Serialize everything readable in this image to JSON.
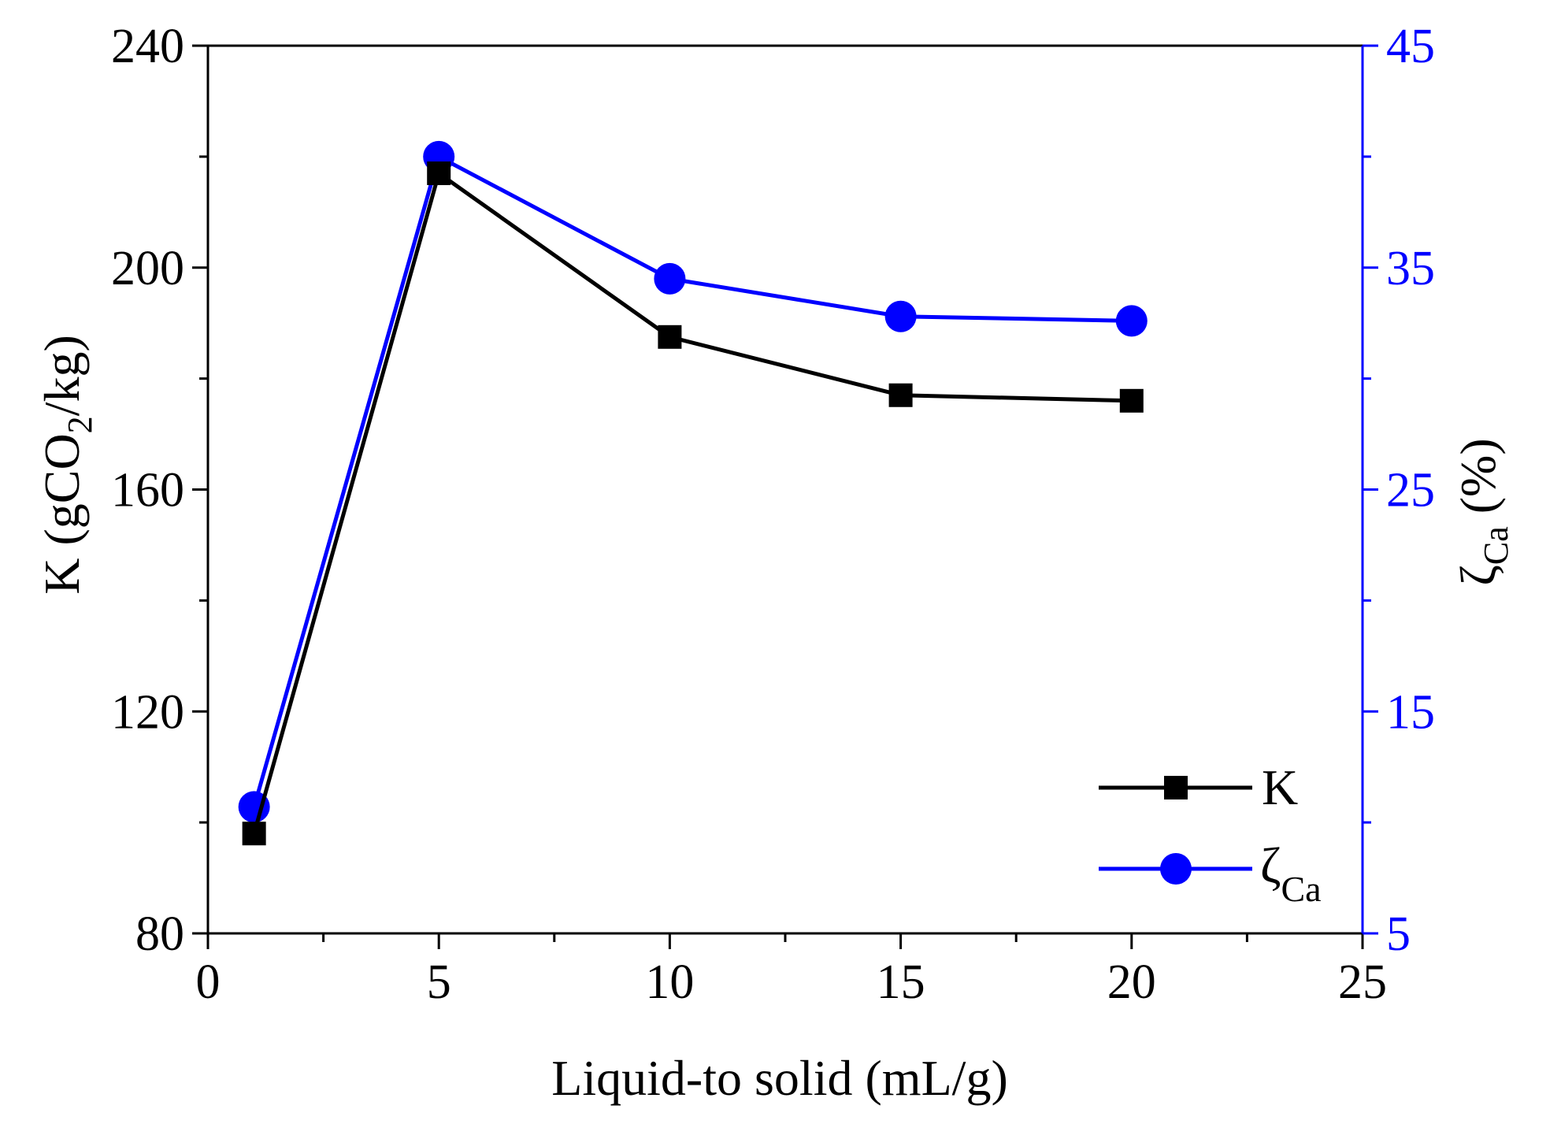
{
  "chart_data": {
    "type": "line",
    "xlabel": "Liquid-to solid (mL/g)",
    "ylabel": {
      "prefix": "K (gCO",
      "sub": "2",
      "suffix": "/kg)"
    },
    "y2label": {
      "symbol": "ζ",
      "sub": "Ca",
      "suffix": " (%)"
    },
    "xlim": [
      0,
      25
    ],
    "ylim": [
      80,
      240
    ],
    "y2lim": [
      5,
      45
    ],
    "xticks": [
      "0",
      "5",
      "10",
      "15",
      "20",
      "25"
    ],
    "yticks": [
      "80",
      "120",
      "160",
      "200",
      "240"
    ],
    "y2ticks": [
      "5",
      "15",
      "25",
      "35",
      "45"
    ],
    "grid": false,
    "legend_position": "bottom-right",
    "series": [
      {
        "name": "K",
        "axis": "left",
        "marker": "square",
        "color": "#000000",
        "x": [
          1,
          5,
          10,
          15,
          20
        ],
        "values": [
          98,
          217,
          187.5,
          177,
          176
        ]
      },
      {
        "name": "ζCa",
        "legend_symbol": "ζ",
        "legend_sub": "Ca",
        "axis": "right",
        "marker": "circle",
        "color": "#0000ff",
        "x": [
          1,
          5,
          10,
          15,
          20
        ],
        "values": [
          10.7,
          40.0,
          34.5,
          32.8,
          32.6
        ]
      }
    ]
  },
  "colors": {
    "left_axis": "#000000",
    "right_axis": "#0000ff"
  }
}
